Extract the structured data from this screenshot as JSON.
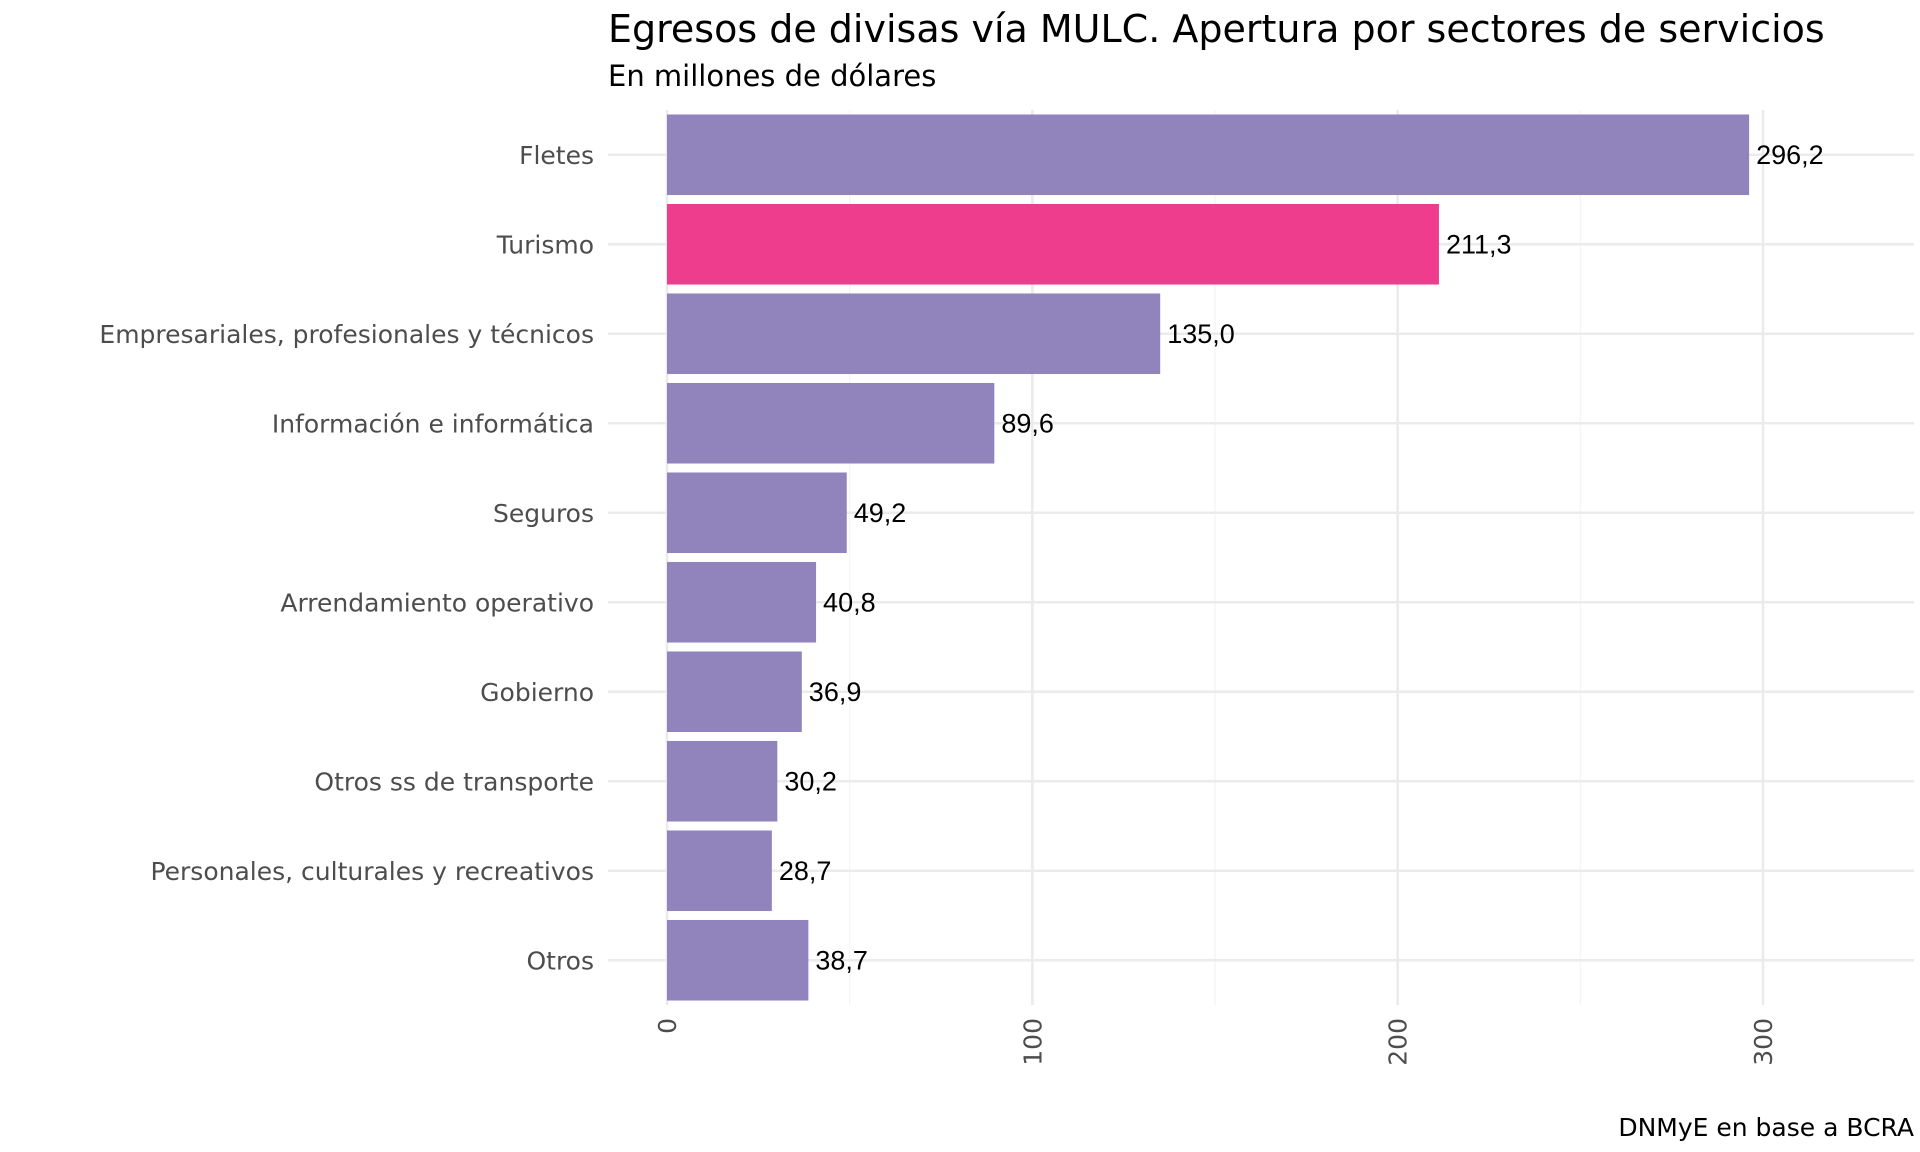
{
  "chart_data": {
    "type": "bar",
    "orientation": "horizontal",
    "title": "Egresos de divisas vía MULC. Apertura por sectores de servicios",
    "subtitle": "En millones de dólares",
    "caption": "DNMyE en base a BCRA",
    "xlabel": "",
    "ylabel": "",
    "xlim": [
      0,
      330
    ],
    "x_ticks": [
      0,
      100,
      200,
      300
    ],
    "x_tick_labels": [
      "0",
      "100",
      "200",
      "300"
    ],
    "grid": true,
    "categories": [
      "Fletes",
      "Turismo",
      "Empresariales, profesionales y técnicos",
      "Información e informática",
      "Seguros",
      "Arrendamiento operativo",
      "Gobierno",
      "Otros ss de transporte",
      "Personales, culturales y recreativos",
      "Otros"
    ],
    "values": [
      296.2,
      211.3,
      135.0,
      89.6,
      49.2,
      40.8,
      36.9,
      30.2,
      28.7,
      38.7
    ],
    "value_labels": [
      "296,2",
      "211,3",
      "135,0",
      "89,6",
      "49,2",
      "40,8",
      "36,9",
      "30,2",
      "28,7",
      "38,7"
    ],
    "highlight": "Turismo",
    "colors": {
      "default": "#9184bd",
      "highlight": "#ee3d8c"
    }
  }
}
